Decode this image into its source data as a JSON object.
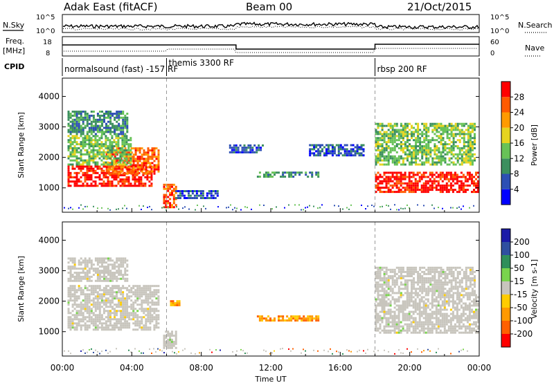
{
  "header": {
    "station": "Adak East (fitACF)",
    "beam": "Beam 00",
    "date": "21/Oct/2015"
  },
  "panel_labels": {
    "nsky": "N.Sky",
    "nsearch": "N.Search",
    "freq_line1": "Freq.",
    "freq_line2": "[MHz]",
    "nave": "Nave",
    "cpid": "CPID"
  },
  "cpid_labels": [
    {
      "text": "normalsound (fast) -157 RF",
      "start": 0
    },
    {
      "text": "themis 3300 RF",
      "start": 6
    },
    {
      "text": "rbsp 200 RF",
      "start": 18
    }
  ],
  "noise_axis": {
    "left_top": "10^5",
    "left_bottom": "10^0",
    "right_top": "10^5",
    "right_bottom": "10^0"
  },
  "freq_axis": {
    "left": [
      "18",
      "8"
    ],
    "right": [
      "60",
      "0"
    ]
  },
  "colors": {
    "power_scale": [
      "#0000ff",
      "#2d4fb4",
      "#3b8f5e",
      "#67c257",
      "#e6d41f",
      "#ff9a00",
      "#ff5a00",
      "#ff0000"
    ],
    "velocity_scale": [
      "#ff0000",
      "#ff6000",
      "#ff9900",
      "#ffcc00",
      "#c8c5bd",
      "#79d44d",
      "#2f8f5a",
      "#2f4fa0",
      "#1a1aa8"
    ],
    "grey": "#c8c5bd"
  },
  "chart_data": [
    {
      "type": "heatmap",
      "name": "power",
      "title": "",
      "xlabel": "",
      "ylabel": "Slant Range [km]",
      "colorbar_label": "Power [dB]",
      "colorbar_ticks": [
        "4",
        "8",
        "12",
        "16",
        "20",
        "24",
        "28"
      ],
      "xlim": [
        0,
        24
      ],
      "ylim": [
        200,
        4600
      ],
      "y_ticks": [
        "1000",
        "2000",
        "3000",
        "4000"
      ],
      "regions": [
        {
          "t0": 0.3,
          "t1": 5.2,
          "r0": 1100,
          "r1": 1800,
          "level": 7
        },
        {
          "t0": 2.5,
          "t1": 5.6,
          "r0": 1500,
          "r1": 2400,
          "level": 6
        },
        {
          "t0": 0.3,
          "t1": 4.0,
          "r0": 1800,
          "r1": 2800,
          "level": 3
        },
        {
          "t0": 0.3,
          "t1": 3.8,
          "r0": 2800,
          "r1": 3600,
          "level": 2
        },
        {
          "t0": 5.8,
          "t1": 6.6,
          "r0": 400,
          "r1": 1200,
          "level": 6
        },
        {
          "t0": 6.5,
          "t1": 9.0,
          "r0": 700,
          "r1": 1000,
          "level": 1
        },
        {
          "t0": 9.6,
          "t1": 11.6,
          "r0": 2200,
          "r1": 2500,
          "level": 1
        },
        {
          "t0": 11.2,
          "t1": 14.8,
          "r0": 1400,
          "r1": 1600,
          "level": 2
        },
        {
          "t0": 14.2,
          "t1": 17.4,
          "r0": 2100,
          "r1": 2500,
          "level": 1
        },
        {
          "t0": 18.0,
          "t1": 24.0,
          "r0": 900,
          "r1": 1600,
          "level": 7
        },
        {
          "t0": 18.0,
          "t1": 23.8,
          "r0": 1800,
          "r1": 3200,
          "level": 3
        }
      ]
    },
    {
      "type": "heatmap",
      "name": "velocity",
      "title": "",
      "xlabel": "Time UT",
      "ylabel": "Slant Range [km]",
      "colorbar_label": "Velocity [m s-1]",
      "colorbar_ticks": [
        "-200",
        "-100",
        "-50",
        "-15",
        "15",
        "50",
        "100",
        "200"
      ],
      "xlim": [
        0,
        24
      ],
      "ylim": [
        200,
        4600
      ],
      "x_ticks": [
        "00:00",
        "04:00",
        "08:00",
        "12:00",
        "16:00",
        "20:00",
        "00:00"
      ],
      "y_ticks": [
        "1000",
        "2000",
        "3000",
        "4000"
      ],
      "regions": [
        {
          "t0": 0.3,
          "t1": 5.6,
          "r0": 1100,
          "r1": 2600,
          "level": 4
        },
        {
          "t0": 0.3,
          "t1": 3.8,
          "r0": 2700,
          "r1": 3500,
          "level": 4
        },
        {
          "t0": 5.8,
          "t1": 6.6,
          "r0": 500,
          "r1": 1100,
          "level": 4
        },
        {
          "t0": 6.2,
          "t1": 6.8,
          "r0": 1900,
          "r1": 2100,
          "level": 2
        },
        {
          "t0": 11.2,
          "t1": 14.8,
          "r0": 1400,
          "r1": 1600,
          "level": 2
        },
        {
          "t0": 18.0,
          "t1": 24.0,
          "r0": 1000,
          "r1": 2300,
          "level": 4
        },
        {
          "t0": 18.0,
          "t1": 23.8,
          "r0": 2300,
          "r1": 3200,
          "level": 4
        }
      ]
    }
  ]
}
